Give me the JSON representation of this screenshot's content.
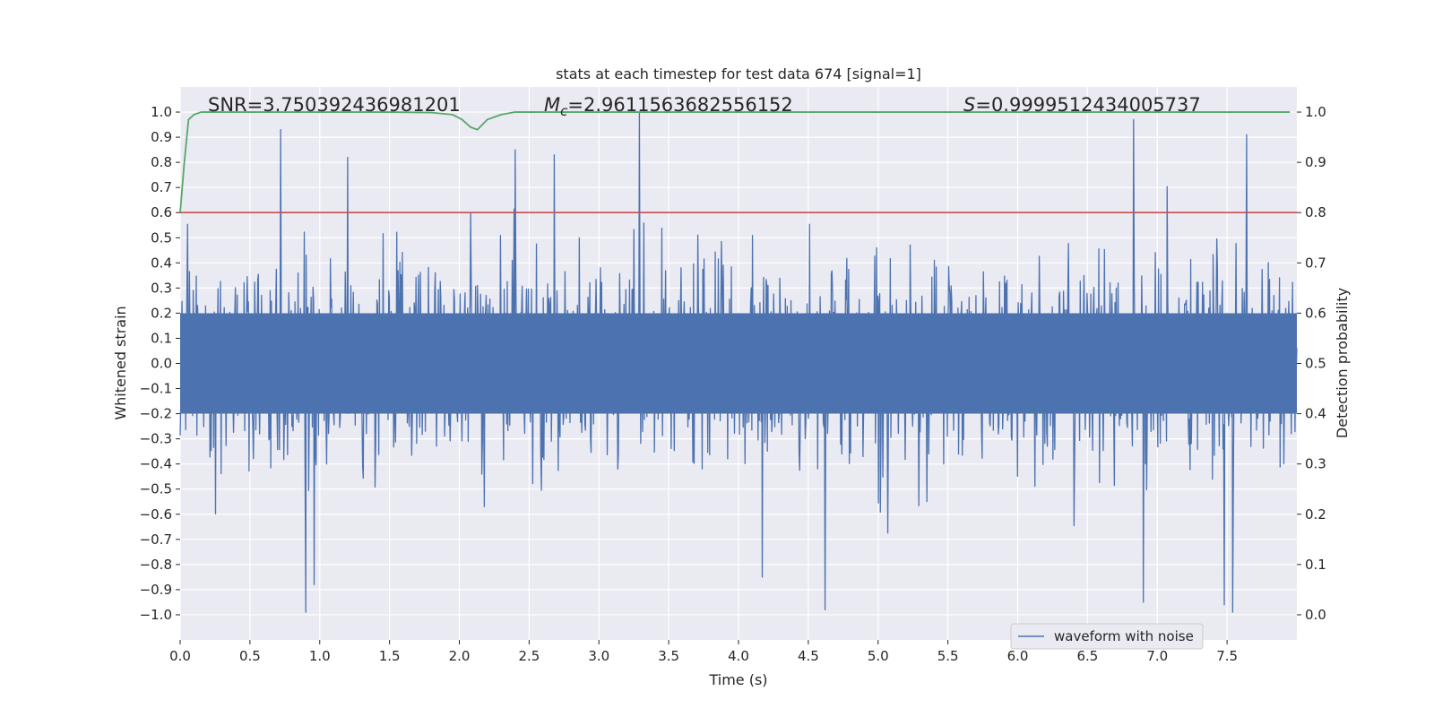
{
  "chart_data": {
    "type": "line",
    "title": "stats at each timestep for test data 674 [signal=1]",
    "xlabel": "Time (s)",
    "ylabel": "Whitened strain",
    "y2label": "Detection probability",
    "xlim": [
      0.0,
      8.0
    ],
    "ylim": [
      -1.1,
      1.1
    ],
    "y2lim": [
      -0.05,
      1.05
    ],
    "x_ticks": [
      0.0,
      0.5,
      1.0,
      1.5,
      2.0,
      2.5,
      3.0,
      3.5,
      4.0,
      4.5,
      5.0,
      5.5,
      6.0,
      6.5,
      7.0,
      7.5
    ],
    "x_tick_labels": [
      "0.0",
      "0.5",
      "1.0",
      "1.5",
      "2.0",
      "2.5",
      "3.0",
      "3.5",
      "4.0",
      "4.5",
      "5.0",
      "5.5",
      "6.0",
      "6.5",
      "7.0",
      "7.5"
    ],
    "y_ticks": [
      1.0,
      0.9,
      0.8,
      0.7,
      0.6,
      0.5,
      0.4,
      0.3,
      0.2,
      0.1,
      0.0,
      -0.1,
      -0.2,
      -0.3,
      -0.4,
      -0.5,
      -0.6,
      -0.7,
      -0.8,
      -0.9,
      -1.0
    ],
    "y_tick_labels": [
      "1.0",
      "0.9",
      "0.8",
      "0.7",
      "0.6",
      "0.5",
      "0.4",
      "0.3",
      "0.2",
      "0.1",
      "0.0",
      "−0.1",
      "−0.2",
      "−0.3",
      "−0.4",
      "−0.5",
      "−0.6",
      "−0.7",
      "−0.8",
      "−0.9",
      "−1.0"
    ],
    "y2_ticks": [
      1.0,
      0.9,
      0.8,
      0.7,
      0.6,
      0.5,
      0.4,
      0.3,
      0.2,
      0.1,
      0.0
    ],
    "y2_tick_labels": [
      "1.0",
      "0.9",
      "0.8",
      "0.7",
      "0.6",
      "0.5",
      "0.4",
      "0.3",
      "0.2",
      "0.1",
      "0.0"
    ],
    "grid": true,
    "legend_position": "bottom-right",
    "series": [
      {
        "name": "waveform with noise",
        "axis": "left",
        "color": "#4c72b0",
        "kind": "noisy-strain",
        "x_range": [
          0.0,
          8.0
        ],
        "upper_extreme_peaks": [
          [
            0.72,
            0.93
          ],
          [
            1.2,
            0.82
          ],
          [
            2.4,
            0.85
          ],
          [
            2.68,
            0.83
          ],
          [
            3.29,
            1.0
          ],
          [
            6.83,
            0.97
          ],
          [
            7.64,
            0.91
          ]
        ],
        "lower_extreme_peaks": [
          [
            0.9,
            -0.99
          ],
          [
            0.96,
            -0.88
          ],
          [
            4.17,
            -0.85
          ],
          [
            4.62,
            -0.98
          ],
          [
            6.9,
            -0.95
          ],
          [
            7.54,
            -0.99
          ],
          [
            7.48,
            -0.96
          ]
        ]
      },
      {
        "name": "detection probability",
        "axis": "right",
        "color": "#55a868",
        "x": [
          0.0,
          0.03,
          0.06,
          0.1,
          0.15,
          0.3,
          0.6,
          1.0,
          1.5,
          1.8,
          1.95,
          2.02,
          2.08,
          2.13,
          2.2,
          2.3,
          2.4,
          2.6,
          3.0,
          4.0,
          5.0,
          6.0,
          7.0,
          7.95
        ],
        "y": [
          0.8,
          0.9,
          0.985,
          0.995,
          1.0,
          1.0,
          1.0,
          1.0,
          1.0,
          0.999,
          0.995,
          0.985,
          0.97,
          0.965,
          0.985,
          0.995,
          1.0,
          1.0,
          1.0,
          1.0,
          1.0,
          1.0,
          1.0,
          1.0
        ]
      },
      {
        "name": "threshold",
        "axis": "right",
        "color": "#c44e52",
        "x": [
          0.0,
          8.0
        ],
        "y": [
          0.8,
          0.8
        ]
      }
    ],
    "annotations": [
      {
        "label": "SNR=3.750392436981201",
        "math_symbol": "",
        "value_text": "SNR=3.750392436981201"
      },
      {
        "label": "M_c=2.9611563682556152",
        "math_symbol": "M",
        "math_sub": "c",
        "value_text": "=2.9611563682556152"
      },
      {
        "label": "S=0.9999512434005737",
        "math_symbol": "S",
        "math_sub": "",
        "value_text": "=0.9999512434005737"
      }
    ],
    "legend": [
      {
        "label": "waveform with noise",
        "color": "#4c72b0"
      }
    ]
  }
}
